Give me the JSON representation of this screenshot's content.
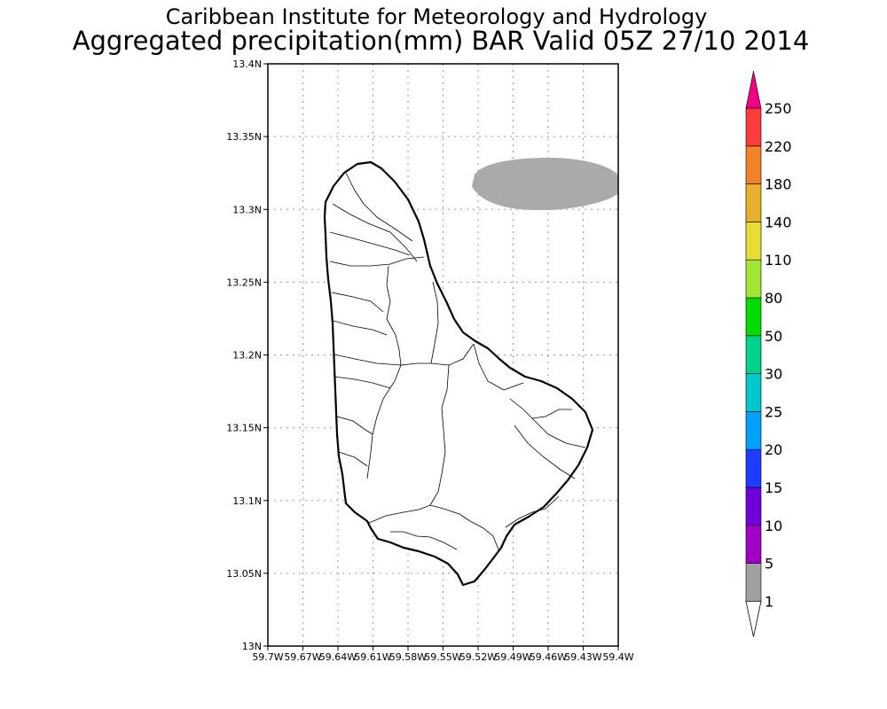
{
  "title_line1": "Caribbean Institute for Meteorology and Hydrology",
  "title_line2": "Aggregated precipitation(mm) BAR Valid 05Z 27/10 2014",
  "map": {
    "region": "Barbados",
    "lon_range": [
      -59.7,
      -59.4
    ],
    "lat_range": [
      13.0,
      13.4
    ],
    "grid": true,
    "y_ticks": [
      "13N",
      "13.05N",
      "13.1N",
      "13.15N",
      "13.2N",
      "13.25N",
      "13.3N",
      "13.35N",
      "13.4N"
    ],
    "x_ticks": [
      "59.7W",
      "59.67W",
      "59.64W",
      "59.61W",
      "59.58W",
      "59.55W",
      "59.52W",
      "59.49W",
      "59.46W",
      "59.43W",
      "59.4W"
    ],
    "precip_region": {
      "class": "1-5 mm",
      "color": "#aaaaaa",
      "location": "offshore north-east"
    }
  },
  "colorbar": {
    "labels": [
      "1",
      "5",
      "10",
      "15",
      "20",
      "25",
      "30",
      "50",
      "80",
      "110",
      "140",
      "180",
      "220",
      "250"
    ],
    "colors": [
      "#a0a0a0",
      "#a000c8",
      "#6e00dc",
      "#1e3cff",
      "#00a0ff",
      "#00c8c8",
      "#00d28c",
      "#00dc00",
      "#a0e632",
      "#e6dc32",
      "#e6af2d",
      "#f08228",
      "#fa3c3c",
      "#f00082"
    ],
    "under_color": "#ffffff",
    "over_color": "#f00082"
  }
}
